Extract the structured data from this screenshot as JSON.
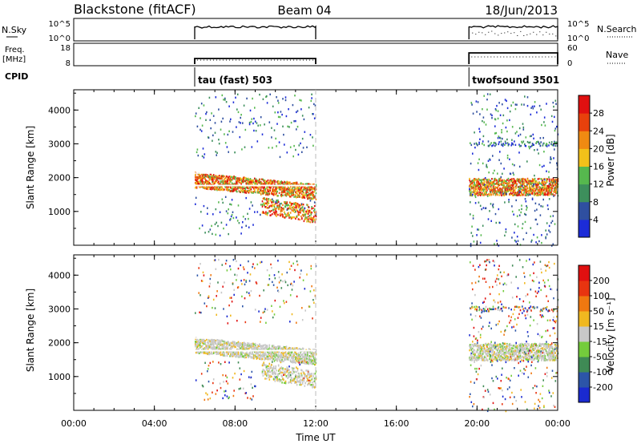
{
  "header": {
    "station": "Blackstone (fitACF)",
    "beam": "Beam 04",
    "date": "18/Jun/2013"
  },
  "summary": {
    "nsky_label": "N.Sky",
    "nsky_ticks": [
      "10^5",
      "10^0"
    ],
    "nsearch_label": "N.Search",
    "nsearch_ticks": [
      "10^5",
      "10^0"
    ],
    "freq_label": "Freq.",
    "freq_unit": "[MHz]",
    "freq_ticks": [
      "18",
      "8"
    ],
    "nave_label": "Nave",
    "nave_ticks": [
      "60",
      "0"
    ],
    "cpid_label": "CPID",
    "cpid_entries": [
      {
        "label": "tau (fast) 503",
        "start": 6.0,
        "end": 12.0
      },
      {
        "label": "twofsound 3501",
        "start": 19.6,
        "end": 24.0
      }
    ]
  },
  "chart_data": [
    {
      "type": "heatmap",
      "name": "power",
      "ylabel": "Slant Range [km]",
      "xlabel": "",
      "ylim": [
        0,
        4600
      ],
      "yticks": [
        "1000",
        "2000",
        "3000",
        "4000"
      ],
      "colorbar_label": "Power [dB]",
      "colorbar_ticks": [
        "4",
        "8",
        "12",
        "16",
        "20",
        "24",
        "28"
      ],
      "colorbar_range": [
        0,
        32
      ],
      "colors": [
        "#1c2cd8",
        "#2f4fa0",
        "#3d8f5c",
        "#56b84e",
        "#f2c11a",
        "#f08a12",
        "#e8410c",
        "#e01010"
      ],
      "intervals_hours": [
        [
          6.0,
          12.0
        ],
        [
          19.6,
          24.0
        ]
      ]
    },
    {
      "type": "heatmap",
      "name": "velocity",
      "ylabel": "Slant Range [km]",
      "xlabel": "Time UT",
      "ylim": [
        0,
        4600
      ],
      "yticks": [
        "1000",
        "2000",
        "3000",
        "4000"
      ],
      "colorbar_label": "Velocity [m s⁻¹]",
      "colorbar_ticks": [
        "200",
        "100",
        "50",
        "15",
        "-15",
        "-50",
        "-100",
        "-200"
      ],
      "colors": [
        "#1a2ad0",
        "#2c55a8",
        "#3f8a55",
        "#74cc3c",
        "#c8c8c8",
        "#f0b820",
        "#f07810",
        "#e83410",
        "#e01010"
      ],
      "intervals_hours": [
        [
          6.0,
          12.0
        ],
        [
          19.6,
          24.0
        ]
      ]
    }
  ],
  "time_axis": {
    "label": "Time UT",
    "ticks": [
      "00:00",
      "04:00",
      "08:00",
      "12:00",
      "16:00",
      "20:00",
      "00:00"
    ],
    "range_hours": [
      0,
      24
    ]
  }
}
